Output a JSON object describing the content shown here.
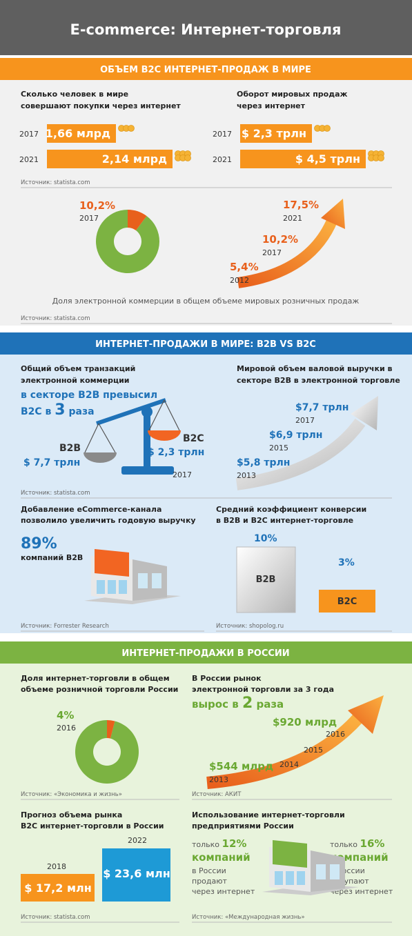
{
  "header": {
    "title": "E-commerce: Интернет-торговля"
  },
  "world_b2c": {
    "title": "ОБЪЕМ B2C ИНТЕРНЕТ-ПРОДАЖ В МИРЕ",
    "buyers": {
      "caption": [
        "Сколько человек в мире",
        "совершают покупки через интернет"
      ],
      "rows": [
        {
          "year": "2017",
          "value": "1,66 млрд"
        },
        {
          "year": "2021",
          "value": "2,14 млрд"
        }
      ]
    },
    "turnover": {
      "caption": [
        "Оборот мировых продаж",
        "через интернет"
      ],
      "rows": [
        {
          "year": "2017",
          "value": "$ 2,3 трлн"
        },
        {
          "year": "2021",
          "value": "$ 4,5 трлн"
        }
      ]
    },
    "source_1": "Источник: statista.com",
    "share_donut": {
      "value": "10,2%",
      "year": "2017"
    },
    "share_growth": [
      {
        "value": "5,4%",
        "year": "2012"
      },
      {
        "value": "10,2%",
        "year": "2017"
      },
      {
        "value": "17,5%",
        "year": "2021"
      }
    ],
    "caption": "Доля электронной коммерции в общем объеме мировых розничных продаж",
    "source_2": "Источник: statista.com"
  },
  "world_b2b": {
    "title": "ИНТЕРНЕТ-ПРОДАЖИ В МИРЕ: B2B VS B2C",
    "volume": {
      "caption": [
        "Общий объем транзакций",
        "электронной коммерции"
      ],
      "highlight_1": "в секторе B2B превысил",
      "highlight_2": [
        "B2C в ",
        "3",
        " раза"
      ],
      "b2b": {
        "label": "B2B",
        "value": "$ 7,7 трлн"
      },
      "b2c": {
        "label": "B2C",
        "value": "$ 2,3 трлн"
      },
      "year": "2017"
    },
    "revenue": {
      "caption": [
        "Мировой объем валовой выручки в",
        "секторе B2B в электронной торговле"
      ],
      "points": [
        {
          "value": "$5,8 трлн",
          "year": "2013"
        },
        {
          "value": "$6,9 трлн",
          "year": "2015"
        },
        {
          "value": "$7,7 трлн",
          "year": "2017"
        }
      ]
    },
    "source_1": "Источник: statista.com",
    "channel": {
      "caption": [
        "Добавление eCommerce-канала",
        "позволило увеличить годовую выручку"
      ],
      "value": "89%",
      "label": "компаний B2B",
      "source": "Источник: Forrester Research"
    },
    "conversion": {
      "caption": [
        "Средний коэффициент конверсии",
        "в B2B и B2C интернет-торговле"
      ],
      "b2b": {
        "label": "B2B",
        "value": "10%"
      },
      "b2c": {
        "label": "B2C",
        "value": "3%"
      },
      "source": "Источник: shopolog.ru"
    }
  },
  "russia": {
    "title": "ИНТЕРНЕТ-ПРОДАЖИ В РОССИИ",
    "share": {
      "caption": [
        "Доля интернет-торговли в общем",
        "объеме розничной торговли России"
      ],
      "value": "4%",
      "year": "2016",
      "source": "Источник: «Экономика и жизнь»"
    },
    "growth": {
      "caption": [
        "В России рынок",
        "электронной торговли за 3 года"
      ],
      "highlight": [
        "вырос в ",
        "2",
        " раза"
      ],
      "start": {
        "value": "$544 млрд",
        "year": "2013"
      },
      "year_2014": "2014",
      "year_2015": "2015",
      "end": {
        "value": "$920 млрд",
        "year": "2016"
      },
      "source": "Источник: АКИТ"
    },
    "forecast": {
      "caption": [
        "Прогноз объема рынка",
        "B2C интернет-торговли в России"
      ],
      "rows": [
        {
          "year": "2018",
          "value": "$ 17,2 млн"
        },
        {
          "year": "2022",
          "value": "$ 23,6 млн"
        }
      ],
      "source": "Источник: statista.com"
    },
    "usage": {
      "caption": [
        "Использование интернет-торговли",
        "предприятиями России"
      ],
      "sell": {
        "lead": "только ",
        "value": "12%",
        "word": "компаний",
        "lines": [
          "в России",
          "продают",
          "через интернет"
        ]
      },
      "buy": {
        "lead": "только ",
        "value": "16%",
        "word": "компаний",
        "lines": [
          "В России",
          "покупают",
          "через интернет"
        ]
      },
      "source": "Источник: «Международная жизнь»"
    }
  }
}
